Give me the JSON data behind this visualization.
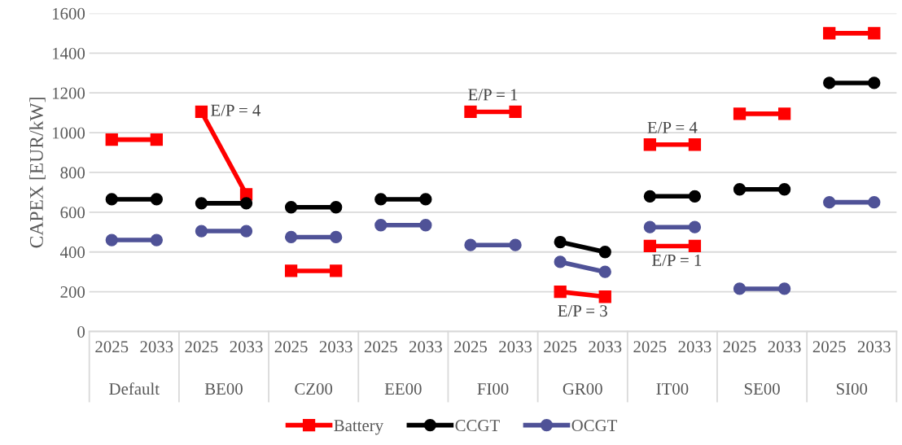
{
  "chart_data": {
    "type": "line",
    "ylabel": "CAPEX [EUR/kW]",
    "categories": [
      "2025",
      "2033",
      "2025",
      "2033",
      "2025",
      "2033",
      "2025",
      "2033",
      "2025",
      "2033",
      "2025",
      "2033",
      "2025",
      "2033",
      "2025",
      "2033",
      "2025",
      "2033"
    ],
    "series": [
      {
        "name": "Battery",
        "color": "#ff0000",
        "marker": "square",
        "values": [
          965,
          965,
          1105,
          690,
          305,
          305,
          null,
          null,
          1105,
          1105,
          200,
          175,
          940,
          940,
          1095,
          1095,
          1500,
          1500
        ]
      },
      {
        "name": "CCGT",
        "color": "#000000",
        "marker": "circle",
        "values": [
          665,
          665,
          645,
          645,
          625,
          625,
          665,
          665,
          null,
          null,
          450,
          400,
          680,
          680,
          715,
          715,
          1250,
          1250
        ]
      },
      {
        "name": "OCGT",
        "color": "#4f5297",
        "marker": "circle",
        "values": [
          460,
          460,
          505,
          505,
          475,
          475,
          535,
          535,
          435,
          435,
          350,
          300,
          525,
          525,
          215,
          215,
          650,
          650
        ]
      },
      {
        "color": "#ff0000",
        "marker": "square",
        "values": [
          null,
          null,
          null,
          null,
          null,
          null,
          null,
          null,
          null,
          null,
          null,
          null,
          430,
          430,
          null,
          null,
          null,
          null
        ]
      }
    ],
    "ylim": [
      0,
      1600
    ],
    "yticks": [
      0,
      200,
      400,
      600,
      800,
      1000,
      1200,
      1400,
      1600
    ],
    "grid": "y",
    "legend": "bottom",
    "annotations": [
      "Default",
      "BE00",
      "CZ00",
      "EE00",
      "FI00",
      "GR00",
      "IT00",
      "SE00",
      "SI00",
      "E/P = 4",
      "E/P = 1",
      "E/P = 3",
      "E/P = 4",
      "E/P = 1"
    ]
  }
}
